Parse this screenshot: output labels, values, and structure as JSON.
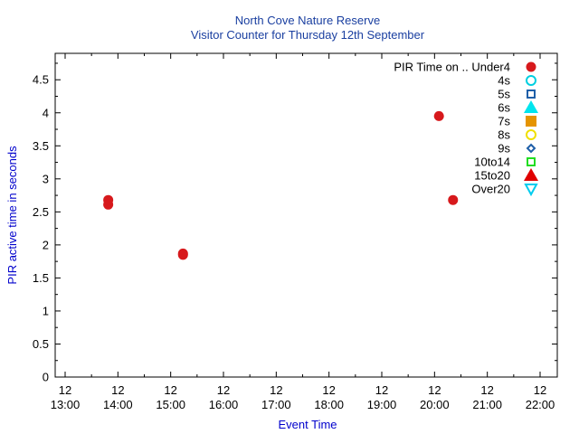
{
  "chart_data": {
    "type": "scatter",
    "title_lines": [
      "North Cove Nature Reserve",
      "Visitor Counter for Thursday 12th September"
    ],
    "xlabel": "Event Time",
    "ylabel": "PIR active time in seconds",
    "xlim": [
      "2024-09-12 13:00",
      "2024-09-12 22:00"
    ],
    "ylim": [
      0,
      4.9
    ],
    "y_ticks": [
      0,
      0.5,
      1,
      1.5,
      2,
      2.5,
      3,
      3.5,
      4,
      4.5
    ],
    "y_tick_labels": [
      "0",
      "0.5",
      "1",
      "1.5",
      "2",
      "2.5",
      "3",
      "3.5",
      "4",
      "4.5"
    ],
    "x_ticks": [
      {
        "value": "2024-09-12 13:00",
        "day": "12",
        "time": "13:00"
      },
      {
        "value": "2024-09-12 14:00",
        "day": "12",
        "time": "14:00"
      },
      {
        "value": "2024-09-12 15:00",
        "day": "12",
        "time": "15:00"
      },
      {
        "value": "2024-09-12 16:00",
        "day": "12",
        "time": "16:00"
      },
      {
        "value": "2024-09-12 17:00",
        "day": "12",
        "time": "17:00"
      },
      {
        "value": "2024-09-12 18:00",
        "day": "12",
        "time": "18:00"
      },
      {
        "value": "2024-09-12 19:00",
        "day": "12",
        "time": "19:00"
      },
      {
        "value": "2024-09-12 20:00",
        "day": "12",
        "time": "20:00"
      },
      {
        "value": "2024-09-12 21:00",
        "day": "12",
        "time": "21:00"
      },
      {
        "value": "2024-09-12 22:00",
        "day": "12",
        "time": "22:00"
      }
    ],
    "legend_title": "PIR Time on ..",
    "legend_position": "top-right",
    "series": [
      {
        "name": "Under4",
        "marker": "circle-filled",
        "color": "#d7191c",
        "points": [
          {
            "x": "2024-09-12 13:49",
            "y": 2.68
          },
          {
            "x": "2024-09-12 13:49",
            "y": 2.61
          },
          {
            "x": "2024-09-12 15:14",
            "y": 1.87
          },
          {
            "x": "2024-09-12 15:14",
            "y": 1.85
          },
          {
            "x": "2024-09-12 20:05",
            "y": 3.95
          },
          {
            "x": "2024-09-12 20:21",
            "y": 2.68
          }
        ]
      },
      {
        "name": "4s",
        "marker": "circle-open",
        "color": "#00cfe0",
        "points": []
      },
      {
        "name": "5s",
        "marker": "square-open",
        "color": "#1f5fa8",
        "points": []
      },
      {
        "name": "6s",
        "marker": "triangle-up-filled",
        "color": "#00e5ee",
        "points": []
      },
      {
        "name": "7s",
        "marker": "square-filled",
        "color": "#e59400",
        "points": []
      },
      {
        "name": "8s",
        "marker": "circle-open",
        "color": "#f0e000",
        "points": []
      },
      {
        "name": "9s",
        "marker": "diamond-open",
        "color": "#1f5fa8",
        "points": []
      },
      {
        "name": "10to14",
        "marker": "square-open",
        "color": "#22dd22",
        "points": []
      },
      {
        "name": "15to20",
        "marker": "triangle-up-filled",
        "color": "#e00000",
        "points": []
      },
      {
        "name": "Over20",
        "marker": "triangle-down-open",
        "color": "#00ccee",
        "points": []
      }
    ],
    "colors": {
      "title": "#1a3fa0",
      "axis_label": "#0000cc",
      "axis": "#000000",
      "text": "#000000"
    }
  }
}
